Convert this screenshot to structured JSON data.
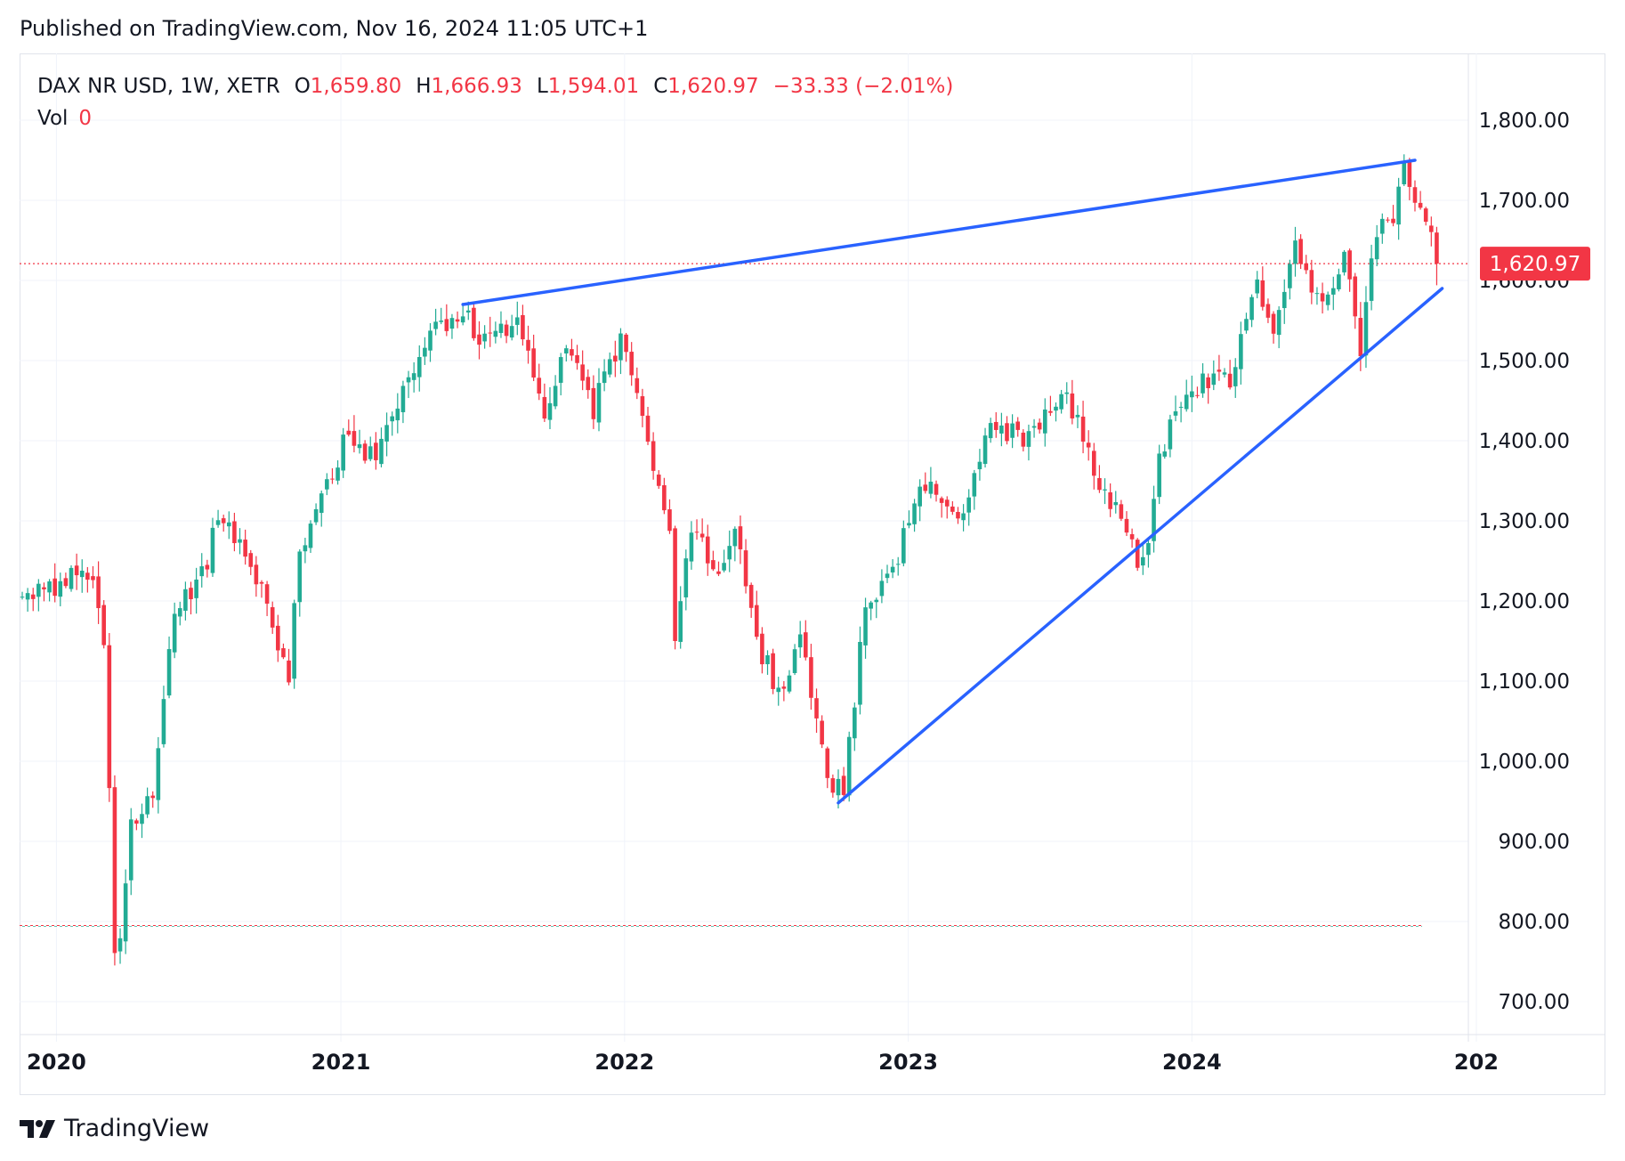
{
  "header": {
    "published": "Published on TradingView.com, Nov 16, 2024 11:05 UTC+1"
  },
  "legend": {
    "symbol": "DAX NR USD, 1W, XETR",
    "o_label": "O",
    "o_value": "1,659.80",
    "h_label": "H",
    "h_value": "1,666.93",
    "l_label": "L",
    "l_value": "1,594.01",
    "c_label": "C",
    "c_value": "1,620.97",
    "change": "−33.33 (−2.01%)",
    "vol_label": "Vol",
    "vol_value": "0"
  },
  "footer": {
    "brand": "TradingView",
    "logo_icon": "tradingview-logo-icon"
  },
  "colors": {
    "up": "#22ab94",
    "down": "#f23645",
    "trendline": "#2962ff",
    "grid": "#f0f3fa",
    "price_line": "#f23645"
  },
  "chart_data": {
    "type": "candlestick",
    "symbol": "DAX NR USD",
    "interval": "1W",
    "exchange": "XETR",
    "y_axis": {
      "min": 700,
      "max": 1800,
      "ticks": [
        "700.00",
        "800.00",
        "900.00",
        "1,000.00",
        "1,100.00",
        "1,200.00",
        "1,300.00",
        "1,400.00",
        "1,500.00",
        "1,600.00",
        "1,700.00",
        "1,800.00"
      ]
    },
    "x_axis": {
      "start": "2019-11-18",
      "end": "2024-12-16",
      "ticks": [
        {
          "date": "2020-01-01",
          "label": "2020"
        },
        {
          "date": "2021-01-01",
          "label": "2021"
        },
        {
          "date": "2022-01-01",
          "label": "2022"
        },
        {
          "date": "2023-01-01",
          "label": "2023"
        },
        {
          "date": "2024-01-01",
          "label": "2024"
        },
        {
          "date": "2025-01-01",
          "label": "202"
        }
      ]
    },
    "grid": true,
    "last_price": {
      "value": 1620.97,
      "label": "1,620.97"
    },
    "reference_line": {
      "value": 795
    },
    "trendlines": [
      {
        "name": "upper",
        "from": {
          "date": "2021-06-07",
          "value": 1570
        },
        "to": {
          "date": "2024-10-14",
          "value": 1750
        }
      },
      {
        "name": "lower",
        "from": {
          "date": "2022-10-03",
          "value": 948
        },
        "to": {
          "date": "2024-11-18",
          "value": 1590
        }
      }
    ],
    "anchors": [
      [
        "2019-11-18",
        1208
      ],
      [
        "2020-01-13",
        1225
      ],
      [
        "2020-02-17",
        1240
      ],
      [
        "2020-03-02",
        1150
      ],
      [
        "2020-03-16",
        770
      ],
      [
        "2020-03-23",
        790
      ],
      [
        "2020-04-06",
        920
      ],
      [
        "2020-05-04",
        960
      ],
      [
        "2020-06-01",
        1180
      ],
      [
        "2020-07-06",
        1230
      ],
      [
        "2020-07-27",
        1300
      ],
      [
        "2020-09-07",
        1250
      ],
      [
        "2020-10-26",
        1110
      ],
      [
        "2020-11-09",
        1270
      ],
      [
        "2020-12-14",
        1340
      ],
      [
        "2021-01-04",
        1400
      ],
      [
        "2021-02-15",
        1380
      ],
      [
        "2021-03-15",
        1450
      ],
      [
        "2021-04-26",
        1530
      ],
      [
        "2021-06-07",
        1565
      ],
      [
        "2021-06-28",
        1520
      ],
      [
        "2021-08-16",
        1540
      ],
      [
        "2021-09-20",
        1440
      ],
      [
        "2021-10-18",
        1510
      ],
      [
        "2021-11-22",
        1440
      ],
      [
        "2021-12-27",
        1530
      ],
      [
        "2022-01-17",
        1450
      ],
      [
        "2022-02-28",
        1300
      ],
      [
        "2022-03-07",
        1160
      ],
      [
        "2022-03-28",
        1300
      ],
      [
        "2022-04-25",
        1230
      ],
      [
        "2022-05-23",
        1280
      ],
      [
        "2022-06-27",
        1130
      ],
      [
        "2022-07-25",
        1080
      ],
      [
        "2022-08-15",
        1150
      ],
      [
        "2022-09-26",
        960
      ],
      [
        "2022-10-10",
        970
      ],
      [
        "2022-11-07",
        1190
      ],
      [
        "2022-12-12",
        1230
      ],
      [
        "2023-01-16",
        1350
      ],
      [
        "2023-03-13",
        1300
      ],
      [
        "2023-04-17",
        1420
      ],
      [
        "2023-06-05",
        1400
      ],
      [
        "2023-07-24",
        1460
      ],
      [
        "2023-08-21",
        1380
      ],
      [
        "2023-10-23",
        1255
      ],
      [
        "2023-11-06",
        1280
      ],
      [
        "2023-11-20",
        1390
      ],
      [
        "2024-01-15",
        1480
      ],
      [
        "2024-02-19",
        1470
      ],
      [
        "2024-03-25",
        1600
      ],
      [
        "2024-04-15",
        1530
      ],
      [
        "2024-05-13",
        1640
      ],
      [
        "2024-06-17",
        1560
      ],
      [
        "2024-07-15",
        1630
      ],
      [
        "2024-08-05",
        1520
      ],
      [
        "2024-08-26",
        1660
      ],
      [
        "2024-09-16",
        1680
      ],
      [
        "2024-09-30",
        1735
      ],
      [
        "2024-10-28",
        1670
      ],
      [
        "2024-11-11",
        1621
      ]
    ]
  }
}
